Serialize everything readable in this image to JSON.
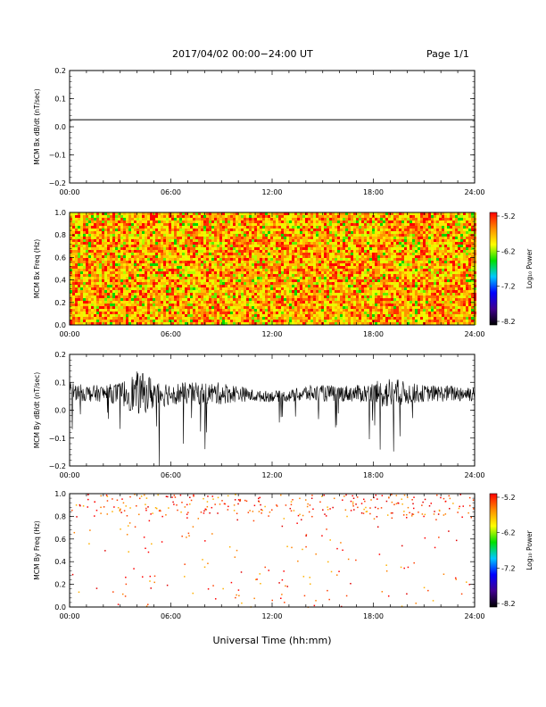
{
  "header": {
    "title": "2017/04/02  00:00−24:00 UT",
    "page": "Page 1/1"
  },
  "xaxis_label": "Universal Time (hh:mm)",
  "colorbar": {
    "label": "Log₁₀ Power",
    "ticks": [
      "-5.2",
      "-6.2",
      "-7.2",
      "-8.2"
    ],
    "colors": [
      "#ff0000",
      "#ff8c00",
      "#ffff00",
      "#00e000",
      "#00c8ff",
      "#0000ff",
      "#400090",
      "#000000"
    ]
  },
  "chart_data": [
    {
      "type": "line",
      "title": "",
      "ylabel": "MCM Bx dB/dt (nT/sec)",
      "xlabel": "",
      "x_ticks": [
        "00:00",
        "06:00",
        "12:00",
        "18:00",
        "24:00"
      ],
      "ylim": [
        -0.2,
        0.2
      ],
      "y_ticks": [
        "0.2",
        "0.1",
        "0.0",
        "−0.1",
        "−0.2"
      ],
      "series": [
        {
          "x": [
            "00:00",
            "24:00"
          ],
          "y": [
            0.025,
            0.025
          ]
        }
      ]
    },
    {
      "type": "heatmap",
      "title": "",
      "ylabel": "MCM Bx Freq (Hz)",
      "xlabel": "",
      "x_ticks": [
        "00:00",
        "06:00",
        "12:00",
        "18:00",
        "24:00"
      ],
      "ylim": [
        0.0,
        1.0
      ],
      "y_ticks": [
        "1.0",
        "0.8",
        "0.6",
        "0.4",
        "0.2",
        "0.0"
      ],
      "power_range": [
        -8.2,
        -5.2
      ],
      "note_fill": "dense noise, mostly yellow/orange/red with scattered green"
    },
    {
      "type": "line",
      "title": "",
      "ylabel": "MCM By dB/dt (nT/sec)",
      "xlabel": "",
      "x_ticks": [
        "00:00",
        "06:00",
        "12:00",
        "18:00",
        "24:00"
      ],
      "ylim": [
        -0.2,
        0.2
      ],
      "y_ticks": [
        "0.2",
        "0.1",
        "0.0",
        "−0.1",
        "−0.2"
      ],
      "series": [
        {
          "x_hours": [
            0,
            1,
            2,
            3,
            4,
            5,
            6,
            7,
            8,
            9,
            10,
            11,
            12,
            13,
            14,
            15,
            16,
            17,
            18,
            19,
            20,
            21,
            22,
            23,
            24
          ],
          "center": [
            0.07,
            0.06,
            0.06,
            0.06,
            0.06,
            0.06,
            0.06,
            0.06,
            0.06,
            0.06,
            0.06,
            0.05,
            0.05,
            0.05,
            0.06,
            0.06,
            0.06,
            0.06,
            0.06,
            0.06,
            0.06,
            0.06,
            0.06,
            0.06,
            0.06
          ],
          "spread": [
            0.03,
            0.03,
            0.03,
            0.04,
            0.08,
            0.06,
            0.04,
            0.04,
            0.04,
            0.04,
            0.03,
            0.02,
            0.02,
            0.02,
            0.03,
            0.03,
            0.03,
            0.03,
            0.04,
            0.06,
            0.04,
            0.03,
            0.03,
            0.03,
            0.03
          ]
        }
      ]
    },
    {
      "type": "heatmap",
      "title": "",
      "ylabel": "MCM By Freq (Hz)",
      "xlabel": "",
      "x_ticks": [
        "00:00",
        "06:00",
        "12:00",
        "18:00",
        "24:00"
      ],
      "ylim": [
        0.0,
        1.0
      ],
      "y_ticks": [
        "1.0",
        "0.8",
        "0.6",
        "0.4",
        "0.2",
        "0.0"
      ],
      "power_range": [
        -8.2,
        -5.2
      ],
      "note_fill": "sparse red/orange points, densest near 0.85–1.0 Hz"
    }
  ]
}
